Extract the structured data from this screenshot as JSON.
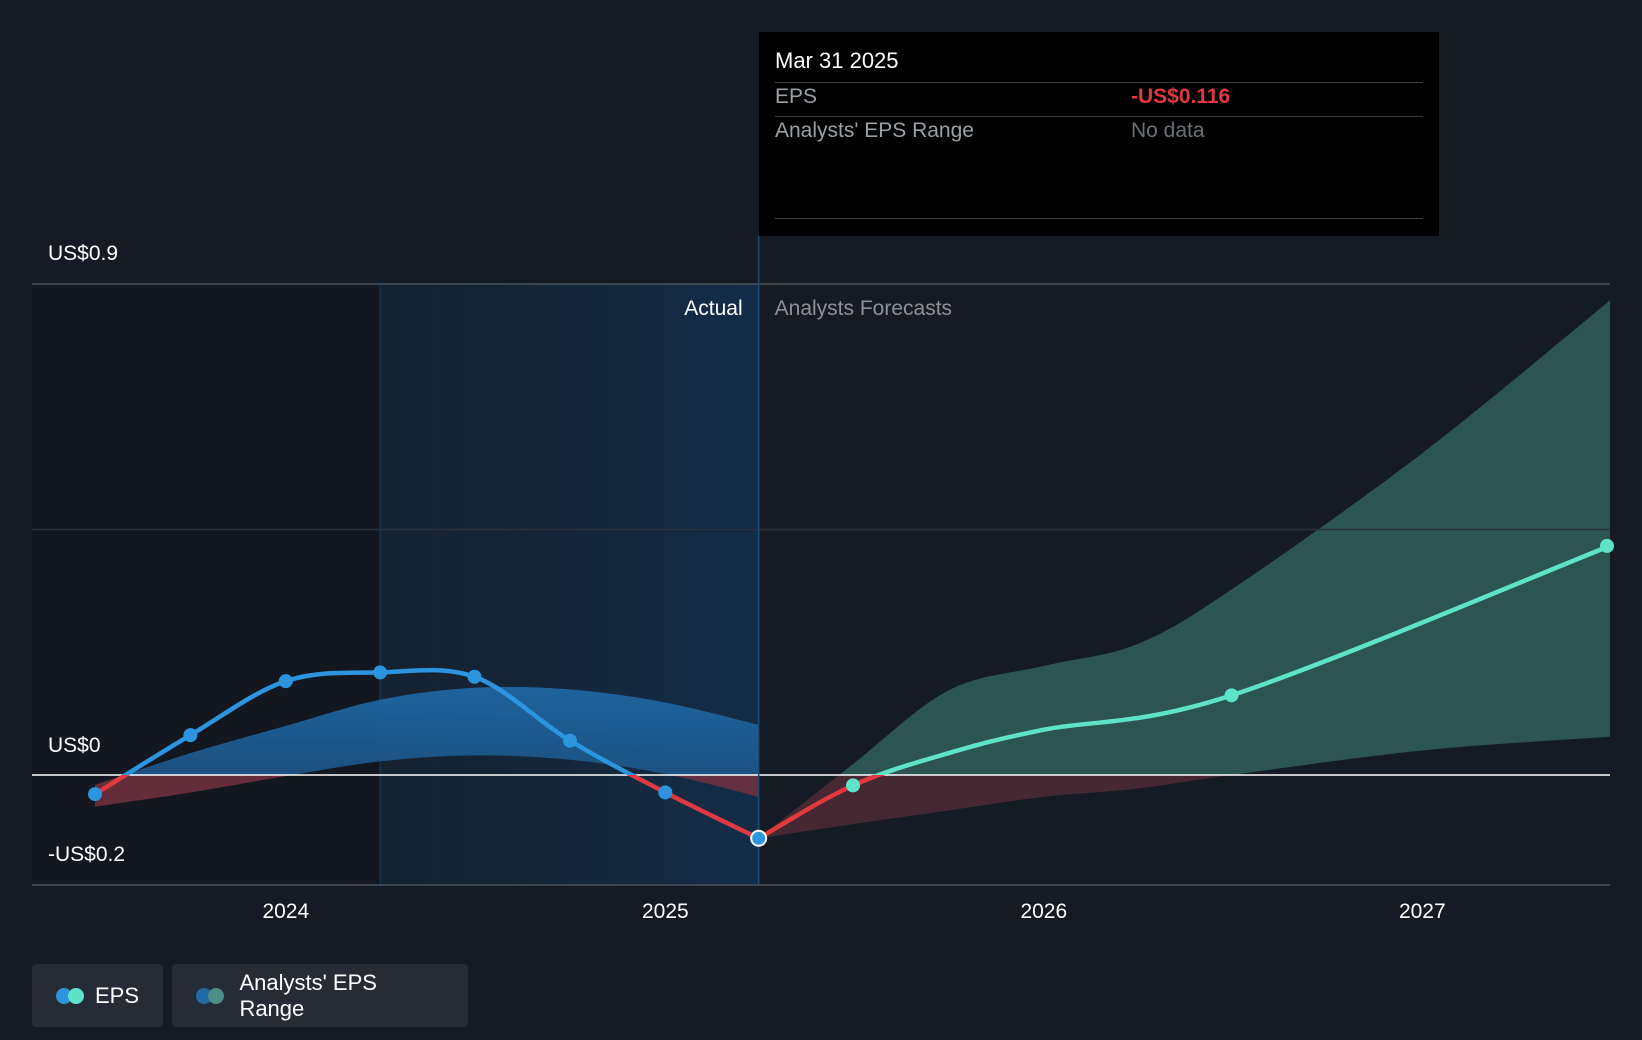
{
  "tooltip": {
    "date": "Mar 31 2025",
    "eps_label": "EPS",
    "eps_value": "-US$0.116",
    "range_label": "Analysts' EPS Range",
    "range_value": "No data"
  },
  "legend": {
    "eps_label": "EPS",
    "range_label": "Analysts' EPS Range"
  },
  "colors": {
    "background": "#151b24",
    "eps_actual": "#2d95e0",
    "eps_negative": "#e0393e",
    "eps_forecast": "#5fe3c8",
    "range_past": "#1f6aa8",
    "range_forecast": "#2f5b57"
  },
  "chart_data": {
    "type": "line",
    "y_tick_labels": [
      "US$0.9",
      "US$0",
      "-US$0.2"
    ],
    "x_tick_labels": [
      "2024",
      "2025",
      "2026",
      "2027"
    ],
    "ylim": [
      -0.2,
      0.9
    ],
    "xlim": [
      "2023-06-30",
      "2027-06-30"
    ],
    "grid": true,
    "region_labels": {
      "past": "Actual",
      "future": "Analysts Forecasts"
    },
    "divider_date": "2025-03-31",
    "series": [
      {
        "name": "EPS",
        "kind": "actual",
        "points": [
          {
            "x": "2023-06-30",
            "y": -0.035
          },
          {
            "x": "2023-09-30",
            "y": 0.073
          },
          {
            "x": "2023-12-31",
            "y": 0.172
          },
          {
            "x": "2024-03-31",
            "y": 0.188
          },
          {
            "x": "2024-06-30",
            "y": 0.18
          },
          {
            "x": "2024-09-30",
            "y": 0.063
          },
          {
            "x": "2024-12-31",
            "y": -0.032
          },
          {
            "x": "2025-03-31",
            "y": -0.116
          }
        ]
      },
      {
        "name": "EPS",
        "kind": "forecast",
        "points": [
          {
            "x": "2025-03-31",
            "y": -0.116
          },
          {
            "x": "2025-06-30",
            "y": -0.019
          },
          {
            "x": "2025-09-30",
            "y": 0.04
          },
          {
            "x": "2025-12-31",
            "y": 0.083
          },
          {
            "x": "2026-06-30",
            "y": 0.146
          },
          {
            "x": "2027-06-30",
            "y": 0.42
          }
        ]
      },
      {
        "name": "Analysts' EPS Range",
        "kind": "range_past",
        "points": [
          {
            "x": "2023-06-30",
            "low": -0.058,
            "high": -0.018
          },
          {
            "x": "2023-09-30",
            "low": -0.032,
            "high": 0.04
          },
          {
            "x": "2023-12-31",
            "low": -0.002,
            "high": 0.09
          },
          {
            "x": "2024-03-31",
            "low": 0.025,
            "high": 0.138
          },
          {
            "x": "2024-06-30",
            "low": 0.036,
            "high": 0.16
          },
          {
            "x": "2024-09-30",
            "low": 0.028,
            "high": 0.157
          },
          {
            "x": "2024-12-31",
            "low": 0.002,
            "high": 0.133
          },
          {
            "x": "2025-03-31",
            "low": -0.04,
            "high": 0.092
          }
        ]
      },
      {
        "name": "Analysts' EPS Range",
        "kind": "range_forecast",
        "points": [
          {
            "x": "2025-03-31",
            "low": -0.116,
            "high": -0.116
          },
          {
            "x": "2025-06-30",
            "low": -0.09,
            "high": 0.02
          },
          {
            "x": "2025-09-30",
            "low": -0.065,
            "high": 0.155
          },
          {
            "x": "2025-12-31",
            "low": -0.04,
            "high": 0.2
          },
          {
            "x": "2026-03-31",
            "low": -0.025,
            "high": 0.24
          },
          {
            "x": "2026-06-30",
            "low": 0.0,
            "high": 0.34
          },
          {
            "x": "2026-12-31",
            "low": 0.045,
            "high": 0.59
          },
          {
            "x": "2027-06-30",
            "low": 0.07,
            "high": 0.87
          }
        ]
      }
    ]
  }
}
